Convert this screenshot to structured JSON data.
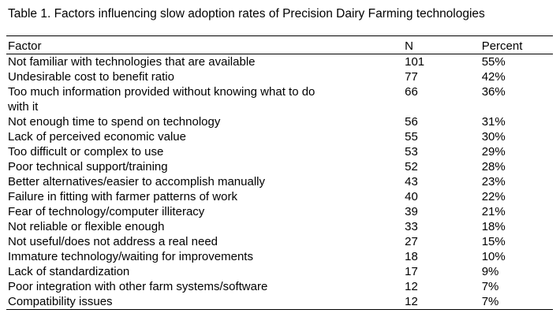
{
  "caption": "Table 1. Factors influencing slow adoption rates of Precision Dairy Farming technologies",
  "headers": {
    "factor": "Factor",
    "n": "N",
    "percent": "Percent"
  },
  "rows": [
    {
      "factor": "Not familiar with technologies that are available",
      "n": "101",
      "percent": "55%"
    },
    {
      "factor": "Undesirable cost to benefit ratio",
      "n": "77",
      "percent": "42%"
    },
    {
      "factor": "Too much information provided without knowing what to do with it",
      "n": "66",
      "percent": "36%"
    },
    {
      "factor": "Not enough time to spend on technology",
      "n": "56",
      "percent": "31%"
    },
    {
      "factor": "Lack of perceived economic value",
      "n": "55",
      "percent": "30%"
    },
    {
      "factor": "Too difficult or complex to use",
      "n": "53",
      "percent": "29%"
    },
    {
      "factor": "Poor technical support/training",
      "n": "52",
      "percent": "28%"
    },
    {
      "factor": "Better alternatives/easier to accomplish manually",
      "n": "43",
      "percent": "23%"
    },
    {
      "factor": "Failure in fitting with farmer patterns of work",
      "n": "40",
      "percent": "22%"
    },
    {
      "factor": "Fear of technology/computer illiteracy",
      "n": "39",
      "percent": "21%"
    },
    {
      "factor": "Not reliable or flexible enough",
      "n": "33",
      "percent": "18%"
    },
    {
      "factor": "Not useful/does not address a real need",
      "n": "27",
      "percent": "15%"
    },
    {
      "factor": "Immature technology/waiting for improvements",
      "n": "18",
      "percent": "10%"
    },
    {
      "factor": "Lack of standardization",
      "n": "17",
      "percent": "9%"
    },
    {
      "factor": "Poor integration with other farm systems/software",
      "n": "12",
      "percent": "7%"
    },
    {
      "factor": "Compatibility issues",
      "n": "12",
      "percent": "7%"
    }
  ]
}
